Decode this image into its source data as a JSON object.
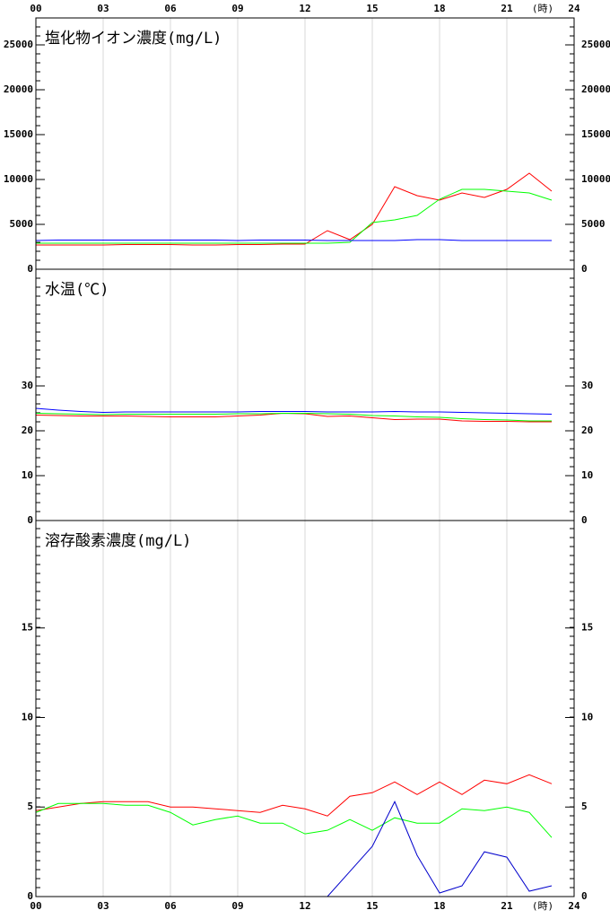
{
  "chart_data": [
    {
      "type": "line",
      "title": "塩化物イオン濃度(mg/L)",
      "x_unit": "(時)",
      "x": [
        0,
        1,
        2,
        3,
        4,
        5,
        6,
        7,
        8,
        9,
        10,
        11,
        12,
        13,
        14,
        15,
        16,
        17,
        18,
        19,
        20,
        21,
        22,
        23
      ],
      "xlim": [
        0,
        24
      ],
      "xticks": [
        {
          "value": 0,
          "label": "00"
        },
        {
          "value": 3,
          "label": "03"
        },
        {
          "value": 6,
          "label": "06"
        },
        {
          "value": 9,
          "label": "09"
        },
        12,
        15,
        18,
        21,
        24
      ],
      "ylim": [
        0,
        28000
      ],
      "yticks": [
        0,
        5000,
        10000,
        15000,
        20000,
        25000
      ],
      "grid": true,
      "series": [
        {
          "color": "#ff0000",
          "values": [
            2700,
            2700,
            2700,
            2700,
            2750,
            2750,
            2750,
            2700,
            2700,
            2750,
            2750,
            2800,
            2800,
            4300,
            3300,
            5000,
            9200,
            8200,
            7700,
            8500,
            8000,
            8900,
            10700,
            8700
          ]
        },
        {
          "color": "#00ff00",
          "values": [
            2900,
            2900,
            2900,
            2900,
            2900,
            2900,
            2900,
            2900,
            2900,
            2900,
            2900,
            2900,
            2900,
            2900,
            3000,
            5200,
            5500,
            6000,
            7800,
            8900,
            8900,
            8700,
            8500,
            7700
          ]
        },
        {
          "color": "#0000ff",
          "values": [
            3200,
            3250,
            3250,
            3250,
            3250,
            3250,
            3250,
            3250,
            3250,
            3200,
            3250,
            3250,
            3250,
            3200,
            3200,
            3200,
            3200,
            3300,
            3300,
            3200,
            3200,
            3200,
            3200,
            3200
          ]
        }
      ]
    },
    {
      "type": "line",
      "title": "水温(℃)",
      "x": [
        0,
        1,
        2,
        3,
        4,
        5,
        6,
        7,
        8,
        9,
        10,
        11,
        12,
        13,
        14,
        15,
        16,
        17,
        18,
        19,
        20,
        21,
        22,
        23
      ],
      "xlim": [
        0,
        24
      ],
      "xticks": [
        {
          "value": 0,
          "label": "00"
        },
        {
          "value": 3,
          "label": "03"
        },
        {
          "value": 6,
          "label": "06"
        },
        {
          "value": 9,
          "label": "09"
        },
        12,
        15,
        18,
        21,
        24
      ],
      "ylim": [
        0,
        56
      ],
      "yticks": [
        0,
        10,
        20,
        30
      ],
      "grid": true,
      "series": [
        {
          "color": "#ff0000",
          "values": [
            23.5,
            23.4,
            23.3,
            23.3,
            23.3,
            23.2,
            23.1,
            23.1,
            23.1,
            23.3,
            23.5,
            23.9,
            23.8,
            23.2,
            23.3,
            22.9,
            22.5,
            22.6,
            22.6,
            22.2,
            22.1,
            22.1,
            22.0,
            22.0
          ]
        },
        {
          "color": "#00ff00",
          "values": [
            23.9,
            23.8,
            23.7,
            23.6,
            23.7,
            23.7,
            23.7,
            23.7,
            23.7,
            23.8,
            23.8,
            23.9,
            23.9,
            23.8,
            23.7,
            23.4,
            23.3,
            23.1,
            23.0,
            22.7,
            22.5,
            22.4,
            22.2,
            22.2
          ]
        },
        {
          "color": "#0000ff",
          "values": [
            25.0,
            24.6,
            24.3,
            24.1,
            24.2,
            24.2,
            24.2,
            24.2,
            24.2,
            24.2,
            24.3,
            24.3,
            24.3,
            24.2,
            24.2,
            24.2,
            24.3,
            24.2,
            24.2,
            24.1,
            24.0,
            23.9,
            23.8,
            23.7
          ]
        }
      ]
    },
    {
      "type": "line",
      "title": "溶存酸素濃度(mg/L)",
      "x_unit": "(時)",
      "x": [
        0,
        1,
        2,
        3,
        4,
        5,
        6,
        7,
        8,
        9,
        10,
        11,
        12,
        13,
        14,
        15,
        16,
        17,
        18,
        19,
        20,
        21,
        22,
        23
      ],
      "xlim": [
        0,
        24
      ],
      "xticks": [
        {
          "value": 0,
          "label": "00"
        },
        {
          "value": 3,
          "label": "03"
        },
        {
          "value": 6,
          "label": "06"
        },
        {
          "value": 9,
          "label": "09"
        },
        12,
        15,
        18,
        21,
        24
      ],
      "ylim": [
        0,
        21
      ],
      "yticks": [
        0,
        5,
        10,
        15
      ],
      "grid": true,
      "series": [
        {
          "color": "#ff0000",
          "values": [
            4.8,
            5.0,
            5.2,
            5.3,
            5.3,
            5.3,
            5.0,
            5.0,
            4.9,
            4.8,
            4.7,
            5.1,
            4.9,
            4.5,
            5.6,
            5.8,
            6.4,
            5.7,
            6.4,
            5.7,
            6.5,
            6.3,
            6.8,
            6.3
          ]
        },
        {
          "color": "#00ff00",
          "values": [
            4.7,
            5.2,
            5.2,
            5.2,
            5.1,
            5.1,
            4.7,
            4.0,
            4.3,
            4.5,
            4.1,
            4.1,
            3.5,
            3.7,
            4.3,
            3.7,
            4.4,
            4.1,
            4.1,
            4.9,
            4.8,
            5.0,
            4.7,
            3.3
          ]
        },
        {
          "color": "#0000cc",
          "values": [
            0,
            0,
            0,
            0,
            0,
            0,
            0,
            0,
            0,
            0,
            0,
            0,
            0,
            0,
            1.4,
            2.8,
            5.3,
            2.3,
            0.2,
            0.6,
            2.5,
            2.2,
            0.3,
            0.6
          ]
        }
      ]
    }
  ]
}
